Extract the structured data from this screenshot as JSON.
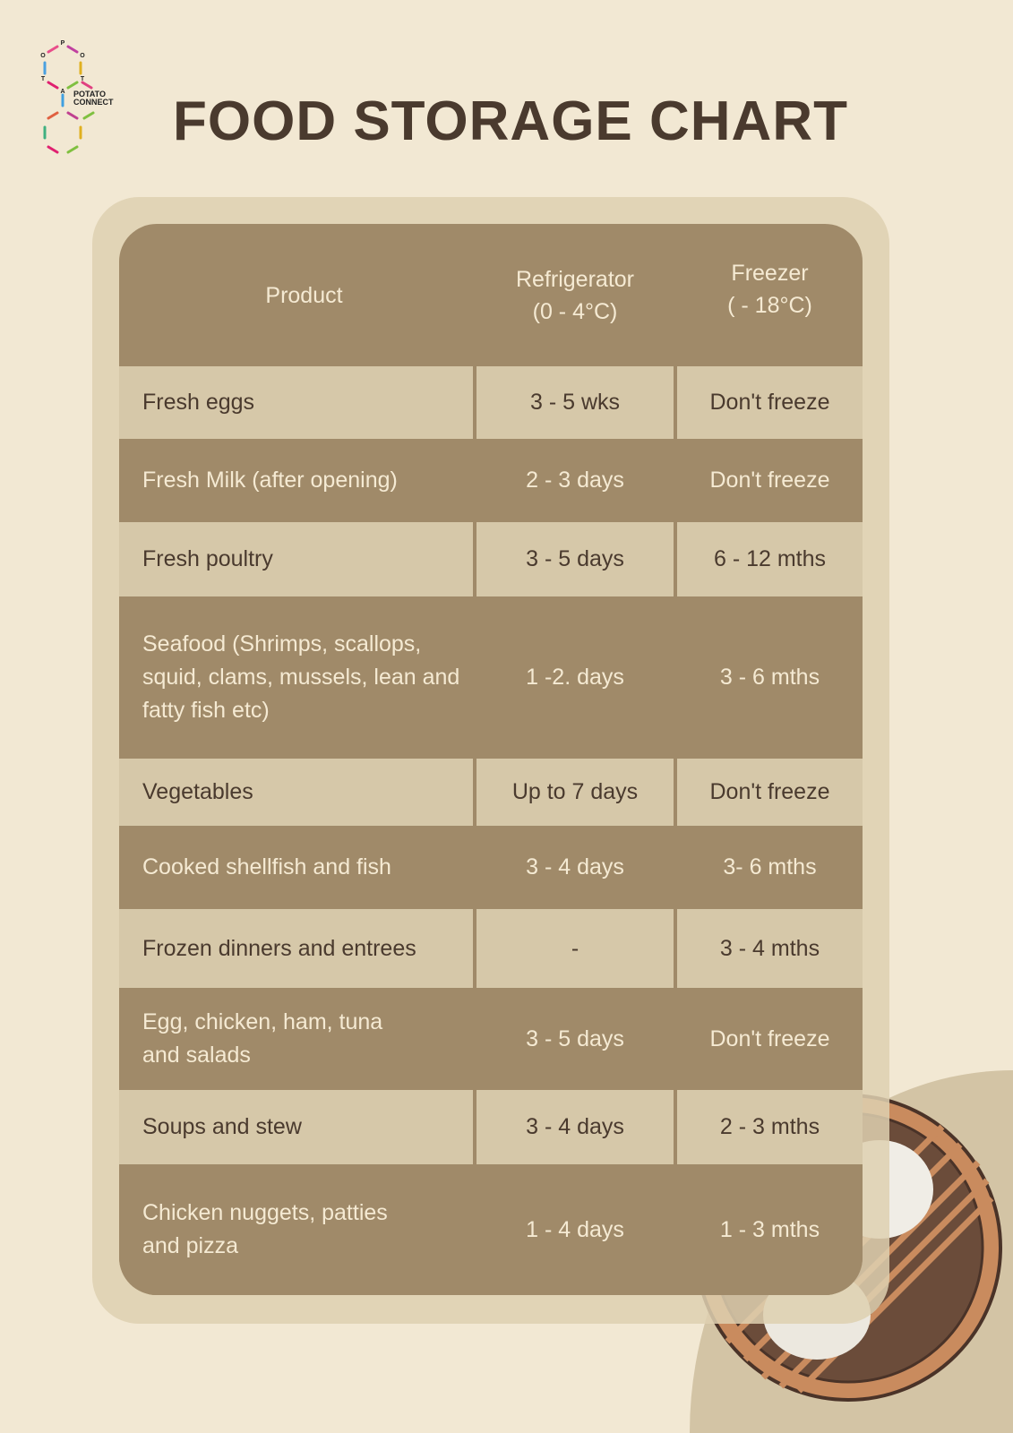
{
  "logo": {
    "text": "POTATO CONNECT",
    "letters": [
      "P",
      "O",
      "O",
      "T",
      "T",
      "A"
    ]
  },
  "title": "FOOD STORAGE CHART",
  "colors": {
    "background": "#f2e8d3",
    "row_light": "#d6c8a9",
    "row_dark": "#a08a69",
    "text_dark": "#4a3a2e",
    "text_light": "#f5ead3"
  },
  "table": {
    "headers": [
      {
        "line1": "Product",
        "line2": ""
      },
      {
        "line1": "Refrigerator",
        "line2": "(0 - 4°C)"
      },
      {
        "line1": "Freezer",
        "line2": "( - 18°C)"
      }
    ],
    "rows": [
      {
        "product": "Fresh eggs",
        "refrigerator": "3 - 5 wks",
        "freezer": "Don't freeze"
      },
      {
        "product": "Fresh Milk (after opening)",
        "refrigerator": "2 - 3 days",
        "freezer": "Don't freeze"
      },
      {
        "product": "Fresh poultry",
        "refrigerator": "3 - 5 days",
        "freezer": "6 - 12 mths"
      },
      {
        "product": "Seafood (Shrimps, scallops, squid, clams, mussels, lean and fatty fish etc)",
        "refrigerator": "1 -2. days",
        "freezer": "3 - 6 mths"
      },
      {
        "product": "Vegetables",
        "refrigerator": "Up to 7 days",
        "freezer": "Don't freeze"
      },
      {
        "product": "Cooked shellfish and fish",
        "refrigerator": "3 - 4 days",
        "freezer": "3- 6 mths"
      },
      {
        "product": "Frozen dinners and entrees",
        "refrigerator": "-",
        "freezer": "3 - 4 mths"
      },
      {
        "product": "Egg, chicken, ham, tuna and salads",
        "refrigerator": "3 - 5 days",
        "freezer": "Don't freeze"
      },
      {
        "product": "Soups and stew",
        "refrigerator": "3 - 4 days",
        "freezer": "2 - 3 mths"
      },
      {
        "product": "Chicken nuggets, patties and pizza",
        "refrigerator": "1 - 4 days",
        "freezer": "1 - 3 mths"
      }
    ]
  }
}
